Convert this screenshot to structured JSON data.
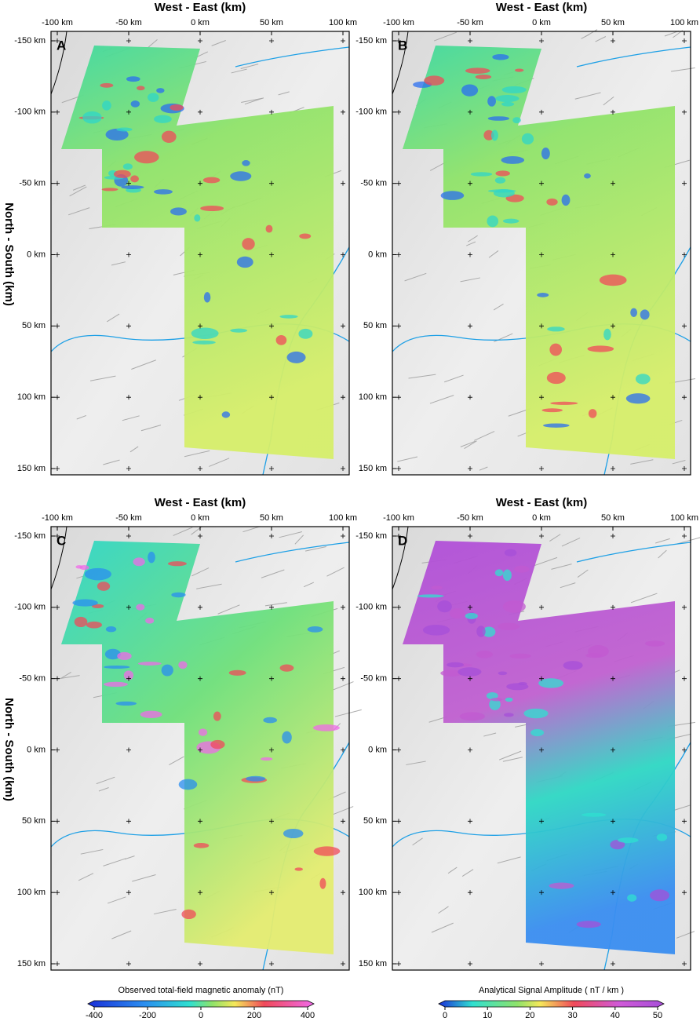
{
  "axes": {
    "xticks": [
      "-100 km",
      "-50 km",
      "0 km",
      "50 km",
      "100 km"
    ],
    "yticks": [
      "-150 km",
      "-100 km",
      "-50 km",
      "0 km",
      "50 km",
      "100 km",
      "150 km"
    ]
  },
  "panels": [
    {
      "label": "A",
      "x_axis_title": "West - East (km)",
      "y_axis_title": "North - South (km)"
    },
    {
      "label": "B",
      "x_axis_title": "West - East (km)"
    },
    {
      "label": "C",
      "x_axis_title": "West - East (km)",
      "y_axis_title": "North - South (km)"
    },
    {
      "label": "D",
      "x_axis_title": "West - East (km)"
    }
  ],
  "colorbars": [
    {
      "title": "Observed total-field magnetic anomaly (nT)",
      "ticks": [
        "-400",
        "-200",
        "0",
        "200",
        "400"
      ]
    },
    {
      "title": "Analytical Signal Amplitude  ( nT / km )",
      "ticks": [
        "0",
        "10",
        "20",
        "30",
        "40",
        "50"
      ]
    }
  ]
}
